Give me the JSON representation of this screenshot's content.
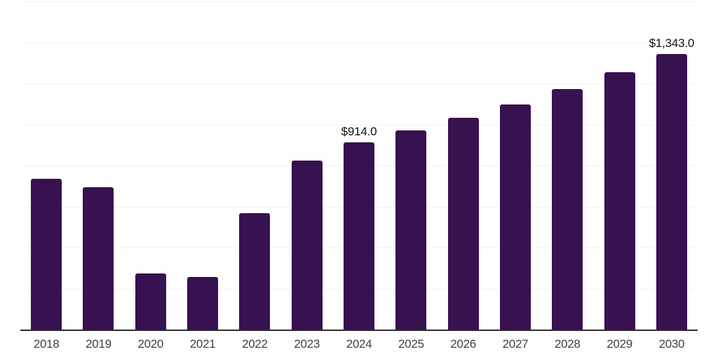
{
  "chart_data": {
    "type": "bar",
    "categories": [
      "2018",
      "2019",
      "2020",
      "2021",
      "2022",
      "2023",
      "2024",
      "2025",
      "2026",
      "2027",
      "2028",
      "2029",
      "2030"
    ],
    "values": [
      734,
      694,
      272,
      258,
      568,
      825,
      914,
      971,
      1031,
      1098,
      1171,
      1256,
      1343
    ],
    "data_labels": [
      "",
      "",
      "",
      "",
      "",
      "",
      "$914.0",
      "",
      "",
      "",
      "",
      "",
      "$1,343.0"
    ],
    "title": "",
    "xlabel": "",
    "ylabel": "",
    "ylim": [
      0,
      1600
    ],
    "gridline_interval": 200,
    "grid": true,
    "legend": false,
    "y_tick_labels_visible": false,
    "colors": {
      "bar": "#371150",
      "grid": "#f2f2f2",
      "axis_line": "#2e2e2e",
      "tick_label": "#404040",
      "data_label": "#111111",
      "background": "#ffffff"
    }
  }
}
